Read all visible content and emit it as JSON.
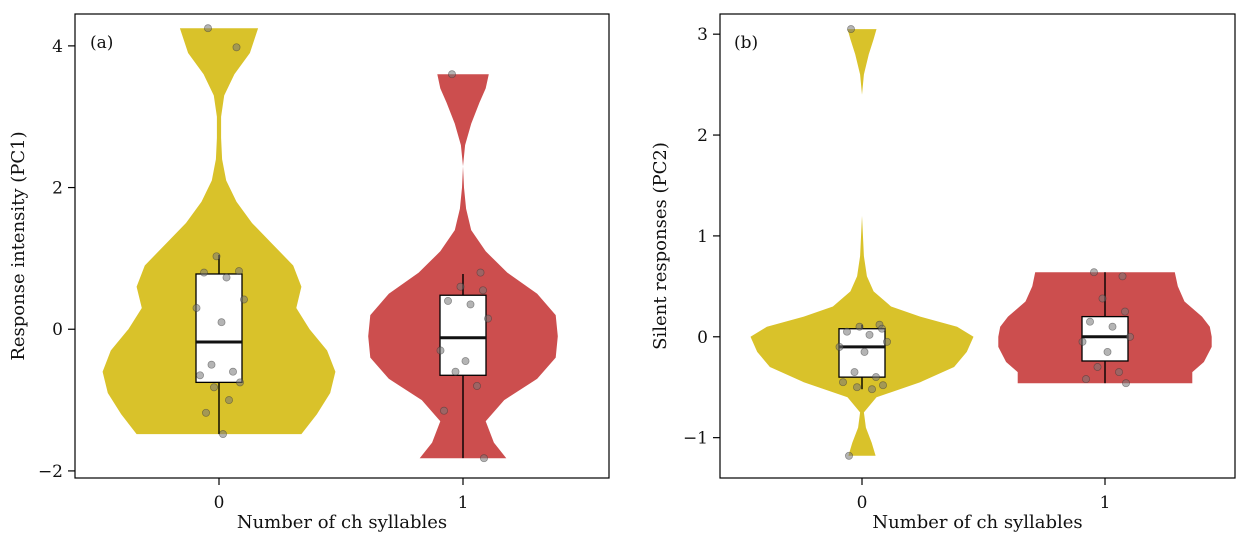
{
  "colors": {
    "group_0": "#d9c22a",
    "group_1": "#cc4e4e",
    "point": "#777777"
  },
  "chart_data": [
    {
      "type": "violin",
      "panel_label": "(a)",
      "xlabel": "Number of ch syllables",
      "ylabel": "Response intensity (PC1)",
      "categories": [
        "0",
        "1"
      ],
      "ylim": [
        -2.1,
        4.45
      ],
      "yticks": [
        -2,
        0,
        2,
        4
      ],
      "ytick_labels": [
        "−2",
        "0",
        "2",
        "4"
      ],
      "grid": false,
      "box": [
        {
          "category": "0",
          "whisker_low": -1.48,
          "q1": -0.75,
          "median": -0.18,
          "q3": 0.78,
          "whisker_high": 1.05
        },
        {
          "category": "1",
          "whisker_low": -1.82,
          "q1": -0.65,
          "median": -0.12,
          "q3": 0.48,
          "whisker_high": 0.78
        }
      ],
      "violin": [
        {
          "category": "0",
          "ymin": -1.48,
          "ymax": 4.25,
          "profile": [
            [
              -1.48,
              0.8
            ],
            [
              -1.2,
              0.95
            ],
            [
              -0.9,
              1.08
            ],
            [
              -0.6,
              1.13
            ],
            [
              -0.3,
              1.05
            ],
            [
              0.0,
              0.88
            ],
            [
              0.3,
              0.75
            ],
            [
              0.6,
              0.8
            ],
            [
              0.9,
              0.72
            ],
            [
              1.2,
              0.52
            ],
            [
              1.5,
              0.32
            ],
            [
              1.8,
              0.17
            ],
            [
              2.1,
              0.07
            ],
            [
              2.4,
              0.03
            ],
            [
              2.7,
              0.02
            ],
            [
              3.0,
              0.02
            ],
            [
              3.3,
              0.05
            ],
            [
              3.6,
              0.15
            ],
            [
              3.9,
              0.3
            ],
            [
              4.25,
              0.38
            ]
          ]
        },
        {
          "category": "1",
          "ymin": -1.82,
          "ymax": 3.6,
          "profile": [
            [
              -1.82,
              0.42
            ],
            [
              -1.6,
              0.3
            ],
            [
              -1.3,
              0.22
            ],
            [
              -1.0,
              0.4
            ],
            [
              -0.7,
              0.72
            ],
            [
              -0.4,
              0.9
            ],
            [
              -0.1,
              0.92
            ],
            [
              0.2,
              0.9
            ],
            [
              0.5,
              0.72
            ],
            [
              0.8,
              0.43
            ],
            [
              1.1,
              0.22
            ],
            [
              1.4,
              0.08
            ],
            [
              1.7,
              0.03
            ],
            [
              2.0,
              0.01
            ],
            [
              2.3,
              0.0
            ],
            [
              2.6,
              0.02
            ],
            [
              2.9,
              0.08
            ],
            [
              3.2,
              0.16
            ],
            [
              3.4,
              0.22
            ],
            [
              3.6,
              0.25
            ]
          ]
        }
      ],
      "points": [
        {
          "category": "0",
          "y": [
            4.25,
            3.98,
            1.03,
            0.82,
            0.8,
            0.73,
            0.42,
            0.3,
            0.1,
            -0.5,
            -0.6,
            -0.65,
            -0.75,
            -0.82,
            -1.0,
            -1.18,
            -1.48
          ]
        },
        {
          "category": "1",
          "y": [
            3.6,
            0.8,
            0.6,
            0.55,
            0.4,
            0.35,
            0.15,
            -0.3,
            -0.45,
            -0.6,
            -0.8,
            -1.15,
            -1.82
          ]
        }
      ]
    },
    {
      "type": "violin",
      "panel_label": "(b)",
      "xlabel": "Number of ch syllables",
      "ylabel": "Silent responses (PC2)",
      "categories": [
        "0",
        "1"
      ],
      "ylim": [
        -1.4,
        3.2
      ],
      "yticks": [
        -1,
        0,
        1,
        2,
        3
      ],
      "ytick_labels": [
        "−1",
        "0",
        "1",
        "2",
        "3"
      ],
      "grid": false,
      "box": [
        {
          "category": "0",
          "whisker_low": -0.52,
          "q1": -0.4,
          "median": -0.1,
          "q3": 0.08,
          "whisker_high": 0.12
        },
        {
          "category": "1",
          "whisker_low": -0.46,
          "q1": -0.24,
          "median": 0.0,
          "q3": 0.2,
          "whisker_high": 0.64
        }
      ],
      "violin": [
        {
          "category": "0",
          "ymin": -1.18,
          "ymax": 3.05,
          "profile": [
            [
              -1.18,
              0.14
            ],
            [
              -1.05,
              0.1
            ],
            [
              -0.9,
              0.04
            ],
            [
              -0.75,
              0.02
            ],
            [
              -0.6,
              0.15
            ],
            [
              -0.45,
              0.6
            ],
            [
              -0.3,
              0.95
            ],
            [
              -0.15,
              1.08
            ],
            [
              0.0,
              1.15
            ],
            [
              0.1,
              0.98
            ],
            [
              0.2,
              0.6
            ],
            [
              0.3,
              0.3
            ],
            [
              0.45,
              0.12
            ],
            [
              0.6,
              0.05
            ],
            [
              0.8,
              0.02
            ],
            [
              1.2,
              0.0
            ],
            [
              2.4,
              0.0
            ],
            [
              2.6,
              0.02
            ],
            [
              2.8,
              0.07
            ],
            [
              2.95,
              0.12
            ],
            [
              3.05,
              0.15
            ]
          ]
        },
        {
          "category": "1",
          "ymin": -0.46,
          "ymax": 0.64,
          "profile": [
            [
              -0.46,
              0.9
            ],
            [
              -0.35,
              0.9
            ],
            [
              -0.25,
              1.02
            ],
            [
              -0.1,
              1.1
            ],
            [
              0.0,
              1.1
            ],
            [
              0.1,
              1.08
            ],
            [
              0.2,
              1.0
            ],
            [
              0.35,
              0.82
            ],
            [
              0.5,
              0.75
            ],
            [
              0.64,
              0.72
            ]
          ]
        }
      ],
      "points": [
        {
          "category": "0",
          "y": [
            3.05,
            0.12,
            0.1,
            0.08,
            0.05,
            0.02,
            -0.05,
            -0.1,
            -0.15,
            -0.35,
            -0.4,
            -0.45,
            -0.48,
            -0.5,
            -0.52,
            -1.18
          ]
        },
        {
          "category": "1",
          "y": [
            0.64,
            0.6,
            0.38,
            0.25,
            0.15,
            0.1,
            0.0,
            -0.05,
            -0.15,
            -0.3,
            -0.35,
            -0.42,
            -0.46
          ]
        }
      ]
    }
  ]
}
